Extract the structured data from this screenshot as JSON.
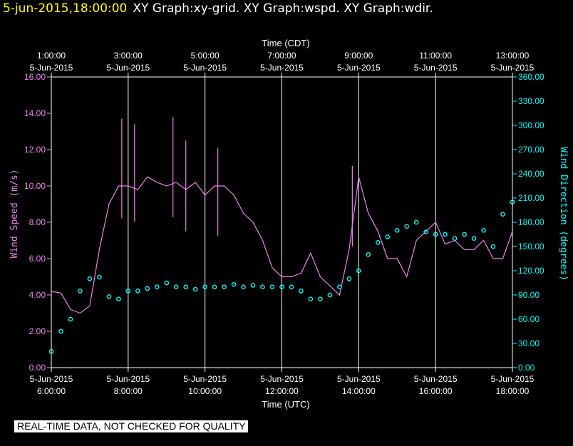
{
  "header": {
    "timestamp": "5-jun-2015,18:00:00",
    "titles": "XY Graph:xy-grid.  XY Graph:wspd.  XY Graph:wdir."
  },
  "notice": "REAL-TIME DATA, NOT CHECKED FOR QUALITY",
  "colors": {
    "background": "#000000",
    "axes": "#ffffff",
    "grid": "#ffffff",
    "wind_speed": "#ee82ee",
    "wind_direction": "#00ffff",
    "header_time": "#ffff00"
  },
  "chart_data": {
    "type": "line",
    "top_xlabel": "Time (CDT)",
    "xlabel": "Time (UTC)",
    "ylabel": "Wind Speed (m/s)",
    "y2label": "Wind Direction (degrees)",
    "xlim": [
      "06:00",
      "18:00"
    ],
    "ylim": [
      0,
      16
    ],
    "y2lim": [
      0,
      360
    ],
    "grid": true,
    "top_ticks": [
      {
        "x": "06:00",
        "time": "1:00:00",
        "date": "5-Jun-2015"
      },
      {
        "x": "08:00",
        "time": "3:00:00",
        "date": "5-Jun-2015"
      },
      {
        "x": "10:00",
        "time": "5:00:00",
        "date": "5-Jun-2015"
      },
      {
        "x": "12:00",
        "time": "7:00:00",
        "date": "5-Jun-2015"
      },
      {
        "x": "14:00",
        "time": "9:00:00",
        "date": "5-Jun-2015"
      },
      {
        "x": "16:00",
        "time": "11:00:00",
        "date": "5-Jun-2015"
      },
      {
        "x": "18:00",
        "time": "13:00:00",
        "date": "5-Jun-2015"
      }
    ],
    "bottom_ticks": [
      {
        "x": "06:00",
        "date": "5-Jun-2015",
        "time": "6:00:00"
      },
      {
        "x": "08:00",
        "date": "5-Jun-2015",
        "time": "8:00:00"
      },
      {
        "x": "10:00",
        "date": "5-Jun-2015",
        "time": "10:00:00"
      },
      {
        "x": "12:00",
        "date": "5-Jun-2015",
        "time": "12:00:00"
      },
      {
        "x": "14:00",
        "date": "5-Jun-2015",
        "time": "14:00:00"
      },
      {
        "x": "16:00",
        "date": "5-Jun-2015",
        "time": "16:00:00"
      },
      {
        "x": "18:00",
        "date": "5-Jun-2015",
        "time": "18:00:00"
      }
    ],
    "y_ticks": [
      "0.00",
      "2.00",
      "4.00",
      "6.00",
      "8.00",
      "10.00",
      "12.00",
      "14.00",
      "16.00"
    ],
    "y2_ticks": [
      "0.00",
      "30.00",
      "60.00",
      "90.00",
      "120.00",
      "150.00",
      "180.00",
      "210.00",
      "240.00",
      "270.00",
      "300.00",
      "330.00",
      "360.00"
    ],
    "series": [
      {
        "name": "Wind Speed",
        "axis": "left",
        "style": "line",
        "x": [
          "06:00",
          "06:15",
          "06:30",
          "06:45",
          "07:00",
          "07:15",
          "07:30",
          "07:45",
          "08:00",
          "08:15",
          "08:30",
          "08:45",
          "09:00",
          "09:15",
          "09:30",
          "09:45",
          "10:00",
          "10:15",
          "10:30",
          "10:45",
          "11:00",
          "11:15",
          "11:30",
          "11:45",
          "12:00",
          "12:15",
          "12:30",
          "12:45",
          "13:00",
          "13:15",
          "13:30",
          "13:45",
          "14:00",
          "14:15",
          "14:30",
          "14:45",
          "15:00",
          "15:15",
          "15:30",
          "15:45",
          "16:00",
          "16:15",
          "16:30",
          "16:45",
          "17:00",
          "17:15",
          "17:30",
          "17:45",
          "18:00"
        ],
        "values": [
          4.2,
          4.1,
          3.2,
          3.0,
          3.4,
          6.5,
          9.0,
          10.0,
          10.0,
          9.8,
          10.5,
          10.2,
          10.0,
          10.2,
          9.8,
          10.2,
          9.5,
          10.0,
          10.0,
          9.5,
          8.5,
          8.0,
          7.0,
          5.5,
          5.0,
          5.0,
          5.2,
          6.3,
          5.0,
          4.5,
          4.0,
          6.5,
          10.5,
          8.5,
          7.5,
          6.0,
          6.0,
          5.0,
          7.0,
          7.5,
          8.0,
          6.8,
          7.0,
          6.5,
          6.5,
          7.0,
          6.0,
          6.0,
          7.5
        ],
        "peak_values_estimated": {
          "07:50": 13.7,
          "08:10": 13.4,
          "09:10": 13.8,
          "09:30": 12.5,
          "10:20": 12.1,
          "13:50": 11.1
        }
      },
      {
        "name": "Wind Direction",
        "axis": "right",
        "style": "markers",
        "x": [
          "06:00",
          "06:15",
          "06:30",
          "06:45",
          "07:00",
          "07:15",
          "07:30",
          "07:45",
          "08:00",
          "08:15",
          "08:30",
          "08:45",
          "09:00",
          "09:15",
          "09:30",
          "09:45",
          "10:00",
          "10:15",
          "10:30",
          "10:45",
          "11:00",
          "11:15",
          "11:30",
          "11:45",
          "12:00",
          "12:15",
          "12:30",
          "12:45",
          "13:00",
          "13:15",
          "13:30",
          "13:45",
          "14:00",
          "14:15",
          "14:30",
          "14:45",
          "15:00",
          "15:15",
          "15:30",
          "15:45",
          "16:00",
          "16:15",
          "16:30",
          "16:45",
          "17:00",
          "17:15",
          "17:30",
          "17:45",
          "18:00"
        ],
        "values": [
          20,
          45,
          60,
          95,
          110,
          112,
          88,
          85,
          95,
          95,
          98,
          100,
          105,
          100,
          100,
          97,
          100,
          100,
          100,
          103,
          100,
          102,
          100,
          100,
          100,
          100,
          95,
          85,
          85,
          90,
          100,
          110,
          120,
          140,
          155,
          162,
          170,
          175,
          180,
          168,
          165,
          165,
          160,
          165,
          160,
          170,
          150,
          190,
          205
        ]
      }
    ]
  }
}
